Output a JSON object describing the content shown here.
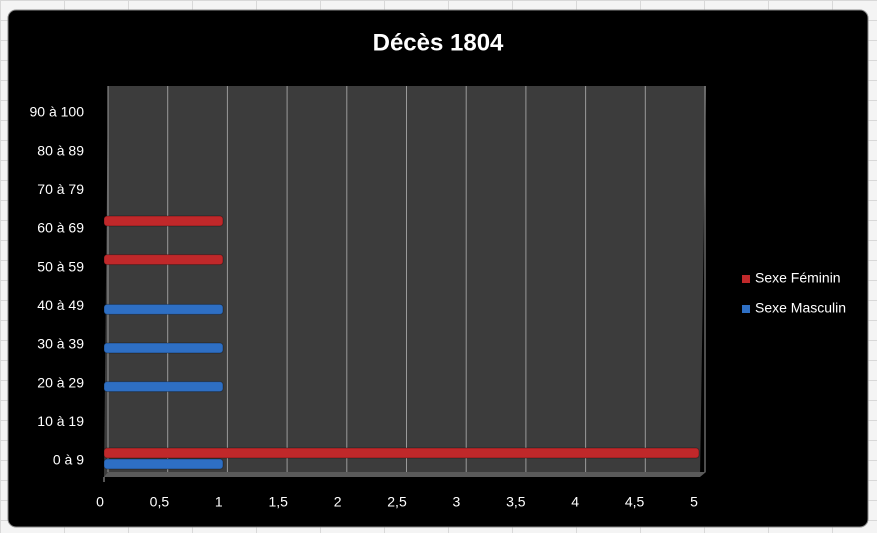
{
  "chart_data": {
    "type": "bar",
    "orientation": "horizontal",
    "title": "Décès 1804",
    "categories": [
      "0 à 9",
      "10 à 19",
      "20 à 29",
      "30 à 39",
      "40 à 49",
      "50 à 59",
      "60 à 69",
      "70 à 79",
      "80 à 89",
      "90 à 100"
    ],
    "series": [
      {
        "name": "Sexe Féminin",
        "color": "#c0282a",
        "values": [
          5,
          null,
          null,
          null,
          null,
          1,
          1,
          null,
          null,
          null
        ]
      },
      {
        "name": "Sexe Masculin",
        "color": "#2e6fc4",
        "values": [
          1,
          null,
          1,
          1,
          1,
          null,
          null,
          null,
          null,
          null
        ]
      }
    ],
    "xlim": [
      0,
      5
    ],
    "xticks": [
      0,
      {
        "value": 0.5,
        "label": "0,5"
      },
      1,
      {
        "value": 1.5,
        "label": "1,5"
      },
      2,
      {
        "value": 2.5,
        "label": "2,5"
      },
      3,
      {
        "value": 3.5,
        "label": "3,5"
      },
      4,
      {
        "value": 4.5,
        "label": "4,5"
      },
      5
    ],
    "grid": true,
    "legend": "right"
  }
}
